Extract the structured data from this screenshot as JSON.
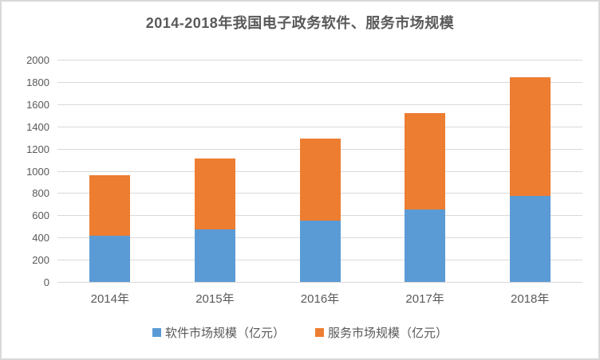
{
  "chart_data": {
    "type": "bar",
    "stacked": true,
    "title": "2014-2018年我国电子政务软件、服务市场规模",
    "categories": [
      "2014年",
      "2015年",
      "2016年",
      "2017年",
      "2018年"
    ],
    "series": [
      {
        "name": "软件市场规模（亿元）",
        "color": "#5B9BD5",
        "values": [
          413,
          470,
          550,
          650,
          775
        ]
      },
      {
        "name": "服务市场规模（亿元）",
        "color": "#ED7D31",
        "values": [
          545,
          640,
          740,
          870,
          1070
        ]
      }
    ],
    "stack_totals": [
      958,
      1110,
      1290,
      1520,
      1845
    ],
    "ylim": [
      0,
      2000
    ],
    "ytick_step": 200,
    "ytick_labels": [
      "0",
      "200",
      "400",
      "600",
      "800",
      "1000",
      "1200",
      "1400",
      "1600",
      "1800",
      "2000"
    ],
    "xlabel": "",
    "ylabel": "",
    "grid": true,
    "grid_color": "#D9D9D9",
    "text_color": "#595959",
    "legend_position": "bottom"
  }
}
